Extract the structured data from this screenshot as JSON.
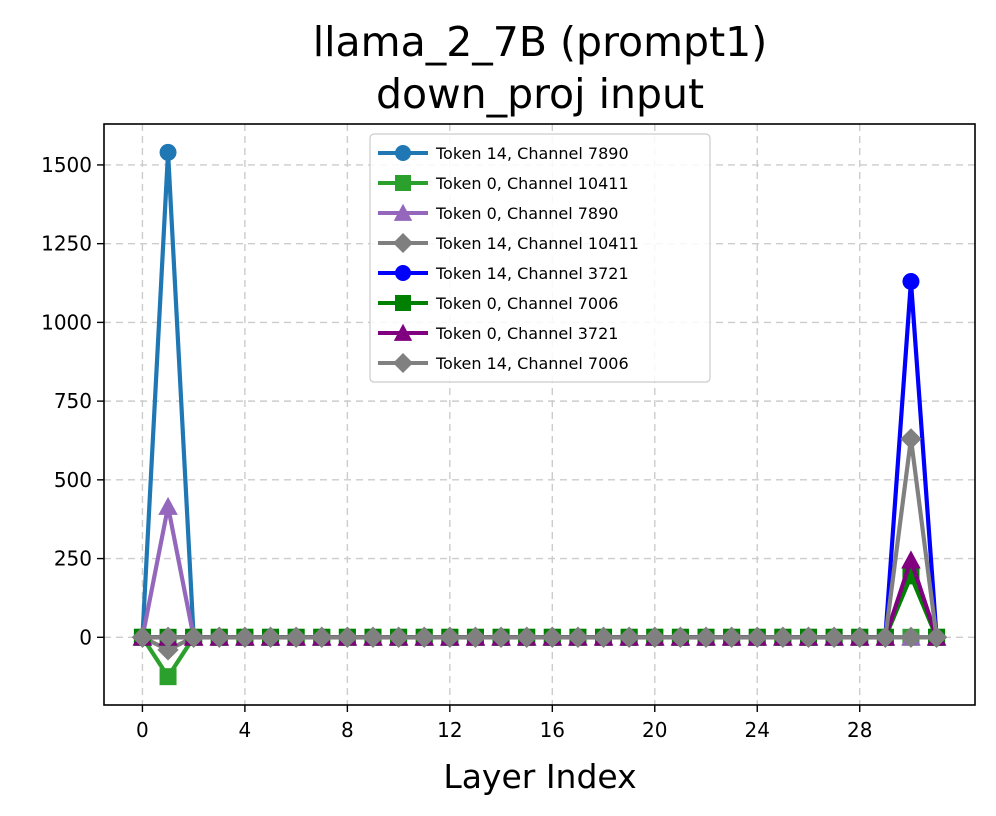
{
  "chart_data": {
    "type": "line",
    "title": "llama_2_7B (prompt1)",
    "subtitle": "down_proj input",
    "xlabel": "Layer Index",
    "ylabel": "",
    "xlim": [
      -1.5,
      32.5
    ],
    "ylim": [
      -215,
      1630
    ],
    "xticks": [
      0,
      4,
      8,
      12,
      16,
      20,
      24,
      28
    ],
    "yticks": [
      0,
      250,
      500,
      750,
      1000,
      1250,
      1500
    ],
    "grid": true,
    "legend_position": "top-center",
    "x": [
      0,
      1,
      2,
      3,
      4,
      5,
      6,
      7,
      8,
      9,
      10,
      11,
      12,
      13,
      14,
      15,
      16,
      17,
      18,
      19,
      20,
      21,
      22,
      23,
      24,
      25,
      26,
      27,
      28,
      29,
      30,
      31
    ],
    "series": [
      {
        "name": "Token 14, Channel 7890",
        "color": "#1f77b4",
        "marker": "circle",
        "values": [
          0,
          1540,
          0,
          0,
          0,
          0,
          0,
          0,
          0,
          0,
          0,
          0,
          0,
          0,
          0,
          0,
          0,
          0,
          0,
          0,
          0,
          0,
          0,
          0,
          0,
          0,
          0,
          0,
          0,
          0,
          0,
          0
        ]
      },
      {
        "name": "Token 0, Channel 10411",
        "color": "#2ca02c",
        "marker": "square",
        "values": [
          0,
          -125,
          0,
          0,
          0,
          0,
          0,
          0,
          0,
          0,
          0,
          0,
          0,
          0,
          0,
          0,
          0,
          0,
          0,
          0,
          0,
          0,
          0,
          0,
          0,
          0,
          0,
          0,
          0,
          0,
          0,
          0
        ]
      },
      {
        "name": "Token 0, Channel 7890",
        "color": "#9467bd",
        "marker": "triangle",
        "values": [
          0,
          415,
          0,
          0,
          0,
          0,
          0,
          0,
          0,
          0,
          0,
          0,
          0,
          0,
          0,
          0,
          0,
          0,
          0,
          0,
          0,
          0,
          0,
          0,
          0,
          0,
          0,
          0,
          0,
          0,
          0,
          0
        ]
      },
      {
        "name": "Token 14, Channel 10411",
        "color": "#7f7f7f",
        "marker": "diamond",
        "values": [
          0,
          -40,
          0,
          0,
          0,
          0,
          0,
          0,
          0,
          0,
          0,
          0,
          0,
          0,
          0,
          0,
          0,
          0,
          0,
          0,
          0,
          0,
          0,
          0,
          0,
          0,
          0,
          0,
          0,
          0,
          0,
          0
        ]
      },
      {
        "name": "Token 14, Channel 3721",
        "color": "#0000ff",
        "marker": "circle",
        "values": [
          0,
          0,
          0,
          0,
          0,
          0,
          0,
          0,
          0,
          0,
          0,
          0,
          0,
          0,
          0,
          0,
          0,
          0,
          0,
          0,
          0,
          0,
          0,
          0,
          0,
          0,
          0,
          0,
          0,
          0,
          1130,
          0
        ]
      },
      {
        "name": "Token 0, Channel 7006",
        "color": "#008000",
        "marker": "square",
        "values": [
          0,
          0,
          0,
          0,
          0,
          0,
          0,
          0,
          0,
          0,
          0,
          0,
          0,
          0,
          0,
          0,
          0,
          0,
          0,
          0,
          0,
          0,
          0,
          0,
          0,
          0,
          0,
          0,
          0,
          0,
          195,
          0
        ]
      },
      {
        "name": "Token 0, Channel 3721",
        "color": "#800080",
        "marker": "triangle",
        "values": [
          0,
          0,
          0,
          0,
          0,
          0,
          0,
          0,
          0,
          0,
          0,
          0,
          0,
          0,
          0,
          0,
          0,
          0,
          0,
          0,
          0,
          0,
          0,
          0,
          0,
          0,
          0,
          0,
          0,
          0,
          245,
          0
        ]
      },
      {
        "name": "Token 14, Channel 7006",
        "color": "#808080",
        "marker": "diamond",
        "values": [
          0,
          0,
          0,
          0,
          0,
          0,
          0,
          0,
          0,
          0,
          0,
          0,
          0,
          0,
          0,
          0,
          0,
          0,
          0,
          0,
          0,
          0,
          0,
          0,
          0,
          0,
          0,
          0,
          0,
          0,
          630,
          0
        ]
      }
    ]
  }
}
